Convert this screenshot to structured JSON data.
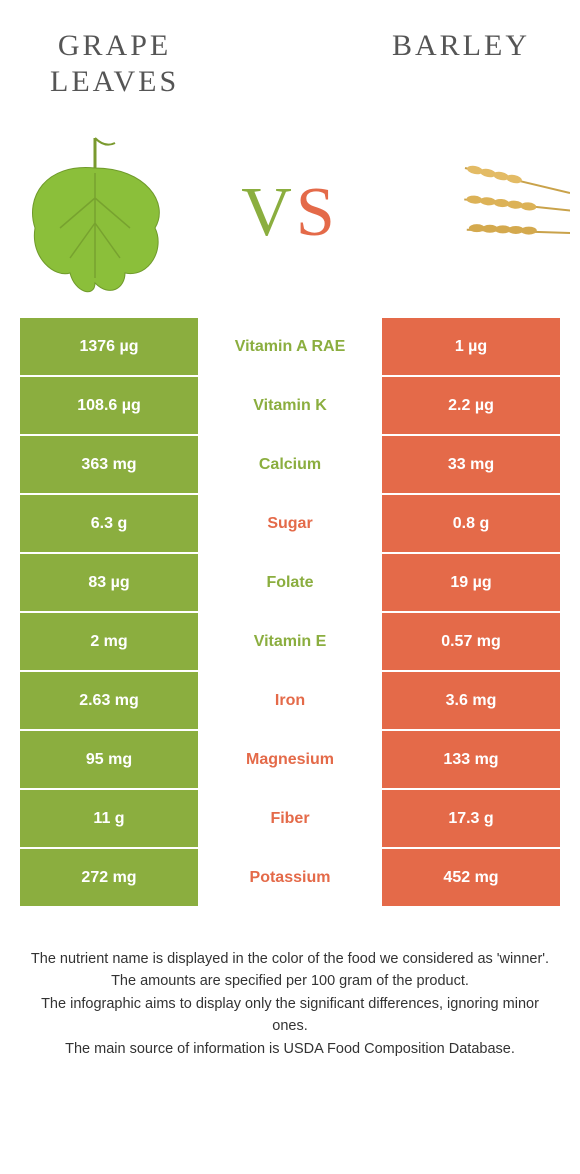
{
  "header": {
    "left_title_line1": "GRAPE",
    "left_title_line2": "LEAVES",
    "right_title": "BARLEY"
  },
  "vs": {
    "v": "V",
    "s": "S"
  },
  "colors": {
    "left": "#8bae3f",
    "right": "#e46a49",
    "left_text": "#8bae3f",
    "right_text": "#e46a49"
  },
  "rows": [
    {
      "left": "1376 µg",
      "mid": "Vitamin A RAE",
      "right": "1 µg",
      "winner": "left"
    },
    {
      "left": "108.6 µg",
      "mid": "Vitamin K",
      "right": "2.2 µg",
      "winner": "left"
    },
    {
      "left": "363 mg",
      "mid": "Calcium",
      "right": "33 mg",
      "winner": "left"
    },
    {
      "left": "6.3 g",
      "mid": "Sugar",
      "right": "0.8 g",
      "winner": "right"
    },
    {
      "left": "83 µg",
      "mid": "Folate",
      "right": "19 µg",
      "winner": "left"
    },
    {
      "left": "2 mg",
      "mid": "Vitamin E",
      "right": "0.57 mg",
      "winner": "left"
    },
    {
      "left": "2.63 mg",
      "mid": "Iron",
      "right": "3.6 mg",
      "winner": "right"
    },
    {
      "left": "95 mg",
      "mid": "Magnesium",
      "right": "133 mg",
      "winner": "right"
    },
    {
      "left": "11 g",
      "mid": "Fiber",
      "right": "17.3 g",
      "winner": "right"
    },
    {
      "left": "272 mg",
      "mid": "Potassium",
      "right": "452 mg",
      "winner": "right"
    }
  ],
  "footer": {
    "l1": "The nutrient name is displayed in the color of the food we considered as 'winner'.",
    "l2": "The amounts are specified per 100 gram of the product.",
    "l3": "The infographic aims to display only the significant differences, ignoring minor ones.",
    "l4": "The main source of information is USDA Food Composition Database."
  }
}
